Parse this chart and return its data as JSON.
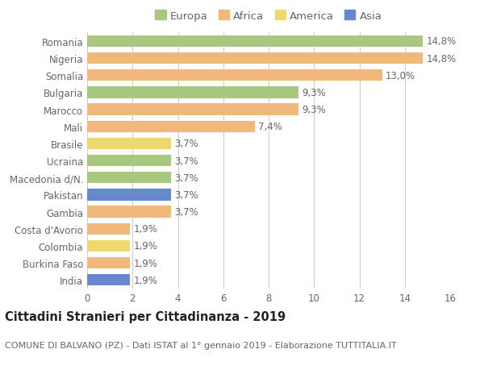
{
  "countries": [
    "Romania",
    "Nigeria",
    "Somalia",
    "Bulgaria",
    "Marocco",
    "Mali",
    "Brasile",
    "Ucraina",
    "Macedonia d/N.",
    "Pakistan",
    "Gambia",
    "Costa d'Avorio",
    "Colombia",
    "Burkina Faso",
    "India"
  ],
  "values": [
    14.8,
    14.8,
    13.0,
    9.3,
    9.3,
    7.4,
    3.7,
    3.7,
    3.7,
    3.7,
    3.7,
    1.9,
    1.9,
    1.9,
    1.9
  ],
  "labels": [
    "14,8%",
    "14,8%",
    "13,0%",
    "9,3%",
    "9,3%",
    "7,4%",
    "3,7%",
    "3,7%",
    "3,7%",
    "3,7%",
    "3,7%",
    "1,9%",
    "1,9%",
    "1,9%",
    "1,9%"
  ],
  "continents": [
    "Europa",
    "Africa",
    "Africa",
    "Europa",
    "Africa",
    "Africa",
    "America",
    "Europa",
    "Europa",
    "Asia",
    "Africa",
    "Africa",
    "America",
    "Africa",
    "Asia"
  ],
  "colors": {
    "Europa": "#a8c880",
    "Africa": "#f0b87a",
    "America": "#f0d870",
    "Asia": "#6688cc"
  },
  "legend_order": [
    "Europa",
    "Africa",
    "America",
    "Asia"
  ],
  "title": "Cittadini Stranieri per Cittadinanza - 2019",
  "subtitle": "COMUNE DI BALVANO (PZ) - Dati ISTAT al 1° gennaio 2019 - Elaborazione TUTTITALIA.IT",
  "xlim": [
    0,
    16
  ],
  "xticks": [
    0,
    2,
    4,
    6,
    8,
    10,
    12,
    14,
    16
  ],
  "background_color": "#ffffff",
  "grid_color": "#cccccc",
  "bar_height": 0.68,
  "title_fontsize": 10.5,
  "subtitle_fontsize": 8,
  "tick_fontsize": 8.5,
  "label_fontsize": 8.5,
  "legend_fontsize": 9.5
}
